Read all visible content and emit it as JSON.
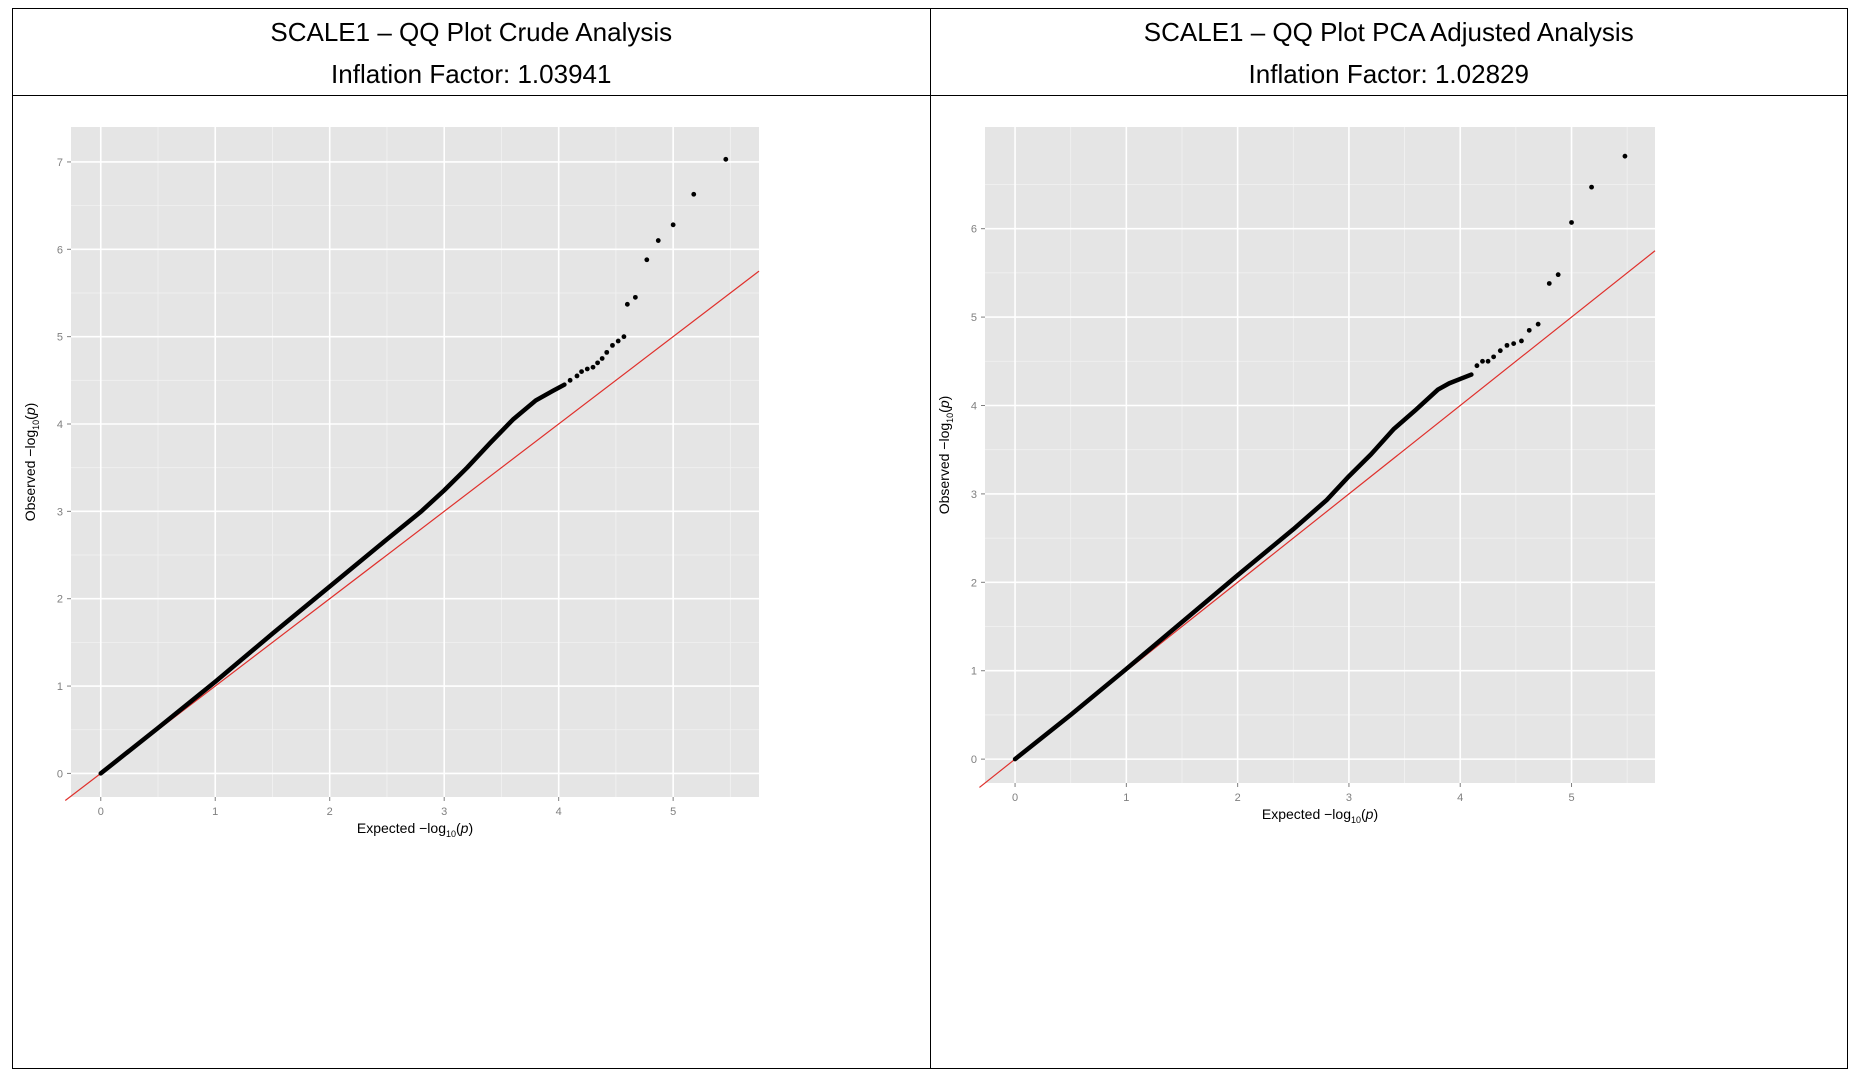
{
  "panels": [
    {
      "title": "SCALE1 – QQ Plot Crude Analysis",
      "subtitle": "Inflation Factor: 1.03941"
    },
    {
      "title": "SCALE1 – QQ Plot PCA Adjusted Analysis",
      "subtitle": "Inflation Factor: 1.02829"
    }
  ],
  "chart_data": [
    {
      "type": "scatter",
      "title": "SCALE1 – QQ Plot Crude Analysis",
      "xlabel": "Expected  −log10(p)",
      "ylabel": "Observed  −log10(p)",
      "xlim": [
        -0.26,
        5.75
      ],
      "ylim": [
        -0.27,
        7.4
      ],
      "xticks": [
        "0",
        "1",
        "2",
        "3",
        "4",
        "5"
      ],
      "yticks": [
        "0",
        "1",
        "2",
        "3",
        "4",
        "5",
        "6",
        "7"
      ],
      "grid": true,
      "background": "#e5e5e5",
      "reference_line": {
        "slope": 1,
        "intercept": 0,
        "color": "#e0302c"
      },
      "curve": {
        "x": [
          0,
          0.5,
          1.0,
          1.5,
          2.0,
          2.5,
          2.8,
          3.0,
          3.2,
          3.4,
          3.6,
          3.8,
          3.95,
          4.05
        ],
        "y": [
          0,
          0.52,
          1.05,
          1.6,
          2.14,
          2.68,
          3.0,
          3.24,
          3.5,
          3.78,
          4.05,
          4.27,
          4.38,
          4.45
        ]
      },
      "points": {
        "x": [
          4.1,
          4.16,
          4.2,
          4.25,
          4.3,
          4.34,
          4.38,
          4.42,
          4.47,
          4.52,
          4.57,
          4.6,
          4.67,
          4.77,
          4.87,
          5.0,
          5.18,
          5.46
        ],
        "y": [
          4.5,
          4.55,
          4.6,
          4.63,
          4.65,
          4.7,
          4.75,
          4.82,
          4.9,
          4.95,
          5.0,
          5.37,
          5.45,
          5.88,
          6.1,
          6.28,
          6.63,
          7.03
        ]
      },
      "point_color": "#000000"
    },
    {
      "type": "scatter",
      "title": "SCALE1 – QQ Plot PCA Adjusted Analysis",
      "xlabel": "Expected  −log10(p)",
      "ylabel": "Observed  −log10(p)",
      "xlim": [
        -0.27,
        5.75
      ],
      "ylim": [
        -0.27,
        7.15
      ],
      "xticks": [
        "0",
        "1",
        "2",
        "3",
        "4",
        "5"
      ],
      "yticks": [
        "0",
        "1",
        "2",
        "3",
        "4",
        "5",
        "6"
      ],
      "grid": true,
      "background": "#e5e5e5",
      "reference_line": {
        "slope": 1,
        "intercept": 0,
        "color": "#e0302c"
      },
      "curve": {
        "x": [
          0,
          0.5,
          1.0,
          1.5,
          2.0,
          2.5,
          2.8,
          3.0,
          3.2,
          3.4,
          3.6,
          3.8,
          3.9,
          4.0,
          4.1
        ],
        "y": [
          0,
          0.5,
          1.02,
          1.55,
          2.08,
          2.6,
          2.93,
          3.2,
          3.45,
          3.73,
          3.95,
          4.18,
          4.25,
          4.3,
          4.35
        ]
      },
      "points": {
        "x": [
          4.15,
          4.2,
          4.25,
          4.3,
          4.36,
          4.42,
          4.48,
          4.55,
          4.62,
          4.7,
          4.8,
          4.88,
          5.0,
          5.18,
          5.48
        ],
        "y": [
          4.45,
          4.5,
          4.5,
          4.55,
          4.62,
          4.68,
          4.7,
          4.73,
          4.85,
          4.92,
          5.38,
          5.48,
          6.07,
          6.47,
          6.82
        ]
      },
      "point_color": "#000000"
    }
  ]
}
